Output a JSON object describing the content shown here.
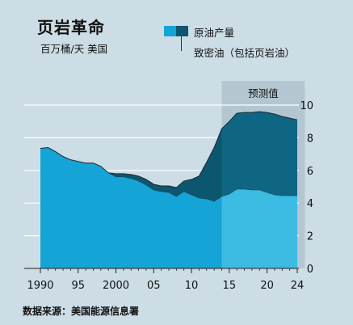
{
  "title": "页岩革命",
  "subtitle": "百万桶/天  美国",
  "source": "数据来源：美国能源信息署",
  "legend": {
    "production_label": "原油产量",
    "tight_oil_label": "致密油（包括页岩油）"
  },
  "forecast_label": "预测值",
  "colors": {
    "background": "#ccdde6",
    "production": "#15a4d6",
    "production_forecast": "#3cbbe3",
    "tight_oil": "#0d566f",
    "tight_oil_forecast": "#0f6682",
    "forecast_band": "#b3c6d1"
  },
  "chart_data": {
    "type": "area",
    "title": "页岩革命",
    "subtitle": "百万桶/天  美国",
    "y_axis_position": "right",
    "ylim": [
      0,
      10
    ],
    "y_ticks": [
      0,
      2,
      4,
      6,
      8,
      10
    ],
    "x_ticks": [
      {
        "value": 1990,
        "label": "1990"
      },
      {
        "value": 1995,
        "label": "95"
      },
      {
        "value": 2000,
        "label": "2000"
      },
      {
        "value": 2005,
        "label": "05"
      },
      {
        "value": 2010,
        "label": "10"
      },
      {
        "value": 2015,
        "label": "15"
      },
      {
        "value": 2020,
        "label": "20"
      },
      {
        "value": 2024,
        "label": "24"
      }
    ],
    "forecast_range": [
      2014,
      2025
    ],
    "gridlines": true,
    "series": [
      {
        "name": "原油产量",
        "values": [
          [
            1990,
            7.35
          ],
          [
            1991,
            7.4
          ],
          [
            1992,
            7.15
          ],
          [
            1993,
            6.85
          ],
          [
            1994,
            6.65
          ],
          [
            1995,
            6.55
          ],
          [
            1996,
            6.45
          ],
          [
            1997,
            6.45
          ],
          [
            1998,
            6.25
          ],
          [
            1999,
            5.85
          ],
          [
            2000,
            5.8
          ],
          [
            2001,
            5.8
          ],
          [
            2002,
            5.75
          ],
          [
            2003,
            5.65
          ],
          [
            2004,
            5.45
          ],
          [
            2005,
            5.15
          ],
          [
            2006,
            5.05
          ],
          [
            2007,
            5.05
          ],
          [
            2008,
            4.95
          ],
          [
            2009,
            5.35
          ],
          [
            2010,
            5.45
          ],
          [
            2011,
            5.65
          ],
          [
            2012,
            6.5
          ],
          [
            2013,
            7.4
          ],
          [
            2014,
            8.55
          ],
          [
            2015,
            9.0
          ],
          [
            2016,
            9.5
          ],
          [
            2017,
            9.55
          ],
          [
            2018,
            9.55
          ],
          [
            2019,
            9.6
          ],
          [
            2020,
            9.55
          ],
          [
            2021,
            9.45
          ],
          [
            2022,
            9.3
          ],
          [
            2023,
            9.2
          ],
          [
            2024,
            9.1
          ]
        ]
      },
      {
        "name": "致密油（包括页岩油）",
        "values": [
          [
            2000,
            0.2
          ],
          [
            2001,
            0.2
          ],
          [
            2002,
            0.25
          ],
          [
            2003,
            0.3
          ],
          [
            2004,
            0.35
          ],
          [
            2005,
            0.35
          ],
          [
            2006,
            0.35
          ],
          [
            2007,
            0.4
          ],
          [
            2008,
            0.55
          ],
          [
            2009,
            0.65
          ],
          [
            2010,
            0.95
          ],
          [
            2011,
            1.35
          ],
          [
            2012,
            2.25
          ],
          [
            2013,
            3.3
          ],
          [
            2014,
            4.15
          ],
          [
            2015,
            4.45
          ],
          [
            2016,
            4.65
          ],
          [
            2017,
            4.7
          ],
          [
            2018,
            4.75
          ],
          [
            2019,
            4.8
          ],
          [
            2020,
            4.9
          ],
          [
            2021,
            4.95
          ],
          [
            2022,
            4.85
          ],
          [
            2023,
            4.75
          ],
          [
            2024,
            4.65
          ]
        ]
      }
    ]
  }
}
